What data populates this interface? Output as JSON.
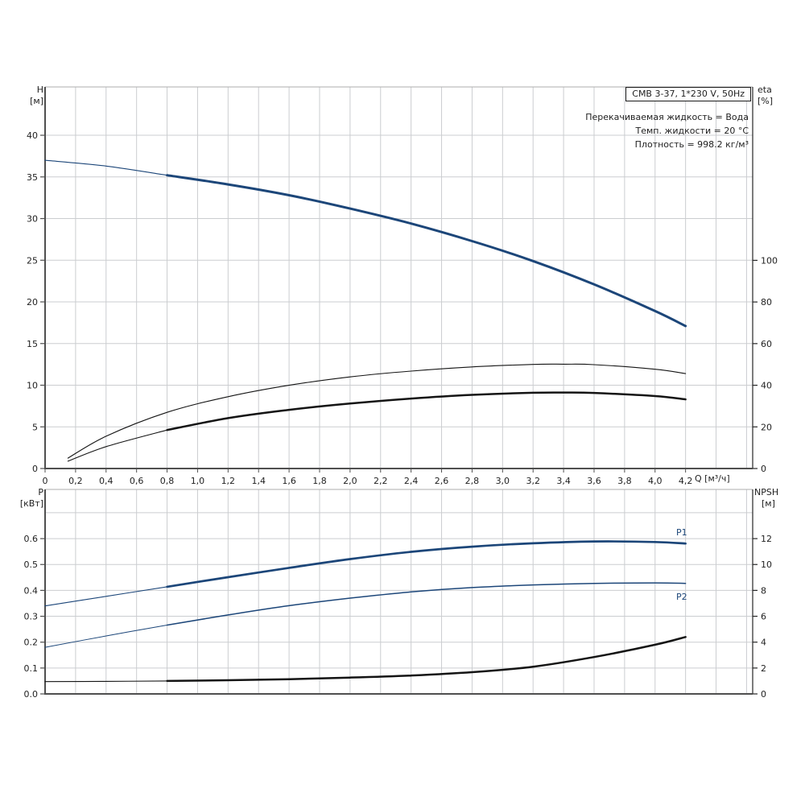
{
  "page": {
    "background": "#ffffff"
  },
  "colors": {
    "curve_blue": "#1c4679",
    "curve_black": "#141414",
    "grid": "#cbcdd0",
    "axis_dark": "#4f4f4f",
    "axis_light": "#aeaeae",
    "axis_right": "#262626",
    "text": "#1f1f1f"
  },
  "title_box": {
    "text": "CMB 3-37, 1*230 V, 50Hz"
  },
  "conditions": {
    "line1": "Перекачиваемая жидкость = Вода",
    "line2": "Темп. жидкости = 20 °C",
    "line3": "Плотность = 998.2 кг/м³"
  },
  "labels": {
    "h_top": "H",
    "h_unit": "[м]",
    "eta_top": "eta",
    "eta_unit": "[%]",
    "q_axis": "Q [м³/ч]",
    "p_top": "P",
    "p_unit": "[кВт]",
    "npsh_top": "NPSH",
    "npsh_unit": "[м]",
    "p1": "P1",
    "p2": "P2"
  },
  "chart_data": [
    {
      "type": "line",
      "name": "head-efficiency-chart",
      "title": "CMB 3-37, 1*230 V, 50Hz",
      "x": {
        "label": "Q [м³/ч]",
        "min": 0,
        "max": 4.64,
        "grid_values": [
          0.2,
          0.4,
          0.6,
          0.8,
          1.0,
          1.2,
          1.4,
          1.6,
          1.8,
          2.0,
          2.2,
          2.4,
          2.6,
          2.8,
          3.0,
          3.2,
          3.4,
          3.6,
          3.8,
          4.0,
          4.2,
          4.4,
          4.6
        ],
        "ticks": [
          0,
          0.2,
          0.4,
          0.6,
          0.8,
          1.0,
          1.2,
          1.4,
          1.6,
          1.8,
          2.0,
          2.2,
          2.4,
          2.6,
          2.8,
          3.0,
          3.2,
          3.4,
          3.6,
          3.8,
          4.0,
          4.2
        ],
        "tick_labels": [
          "0",
          "0,2",
          "0,4",
          "0,6",
          "0,8",
          "1,0",
          "1,2",
          "1,4",
          "1,6",
          "1,8",
          "2,0",
          "2,2",
          "2,4",
          "2,6",
          "2,8",
          "3,0",
          "3,2",
          "3,4",
          "3,6",
          "3,8",
          "4,0",
          "4,2"
        ]
      },
      "left": {
        "label": "H [м]",
        "min": 0,
        "max": 45.8,
        "grid_values": [
          5,
          10,
          15,
          20,
          25,
          30,
          35,
          40
        ],
        "ticks": [
          0,
          5,
          10,
          15,
          20,
          25,
          30,
          35,
          40
        ],
        "tick_labels": [
          "0",
          "5",
          "10",
          "15",
          "20",
          "25",
          "30",
          "35",
          "40"
        ]
      },
      "right": {
        "label": "eta [%]",
        "min": 0,
        "max": 183.3,
        "ticks": [
          0,
          20,
          40,
          60,
          80,
          100
        ],
        "tick_labels": [
          "0",
          "20",
          "40",
          "60",
          "80",
          "100"
        ]
      },
      "series": [
        {
          "name": "H-Q-curve",
          "axis": "left",
          "color": "#1c4679",
          "thin_width": 1.1,
          "thick_width": 3,
          "thick_from": 0.8,
          "points": [
            [
              0,
              37.0
            ],
            [
              0.4,
              36.3
            ],
            [
              0.8,
              35.2
            ],
            [
              1.2,
              34.1
            ],
            [
              1.6,
              32.8
            ],
            [
              2.0,
              31.2
            ],
            [
              2.4,
              29.4
            ],
            [
              2.8,
              27.3
            ],
            [
              3.2,
              24.9
            ],
            [
              3.6,
              22.1
            ],
            [
              4.0,
              18.9
            ],
            [
              4.2,
              17.1
            ]
          ]
        },
        {
          "name": "eta-pump-curve",
          "axis": "right",
          "color": "#141414",
          "thin_width": 1.1,
          "points": [
            [
              0.15,
              5
            ],
            [
              0.4,
              15.5
            ],
            [
              0.8,
              27
            ],
            [
              1.2,
              34.5
            ],
            [
              1.6,
              40
            ],
            [
              2.0,
              44
            ],
            [
              2.4,
              46.8
            ],
            [
              2.8,
              48.8
            ],
            [
              3.2,
              50
            ],
            [
              3.4,
              50.1
            ],
            [
              3.6,
              49.9
            ],
            [
              4.0,
              47.7
            ],
            [
              4.2,
              45.6
            ]
          ]
        },
        {
          "name": "eta-pump-motor-curve",
          "axis": "right",
          "color": "#141414",
          "thin_width": 1.1,
          "thick_width": 2.5,
          "thick_from": 0.8,
          "points": [
            [
              0.15,
              3.5
            ],
            [
              0.4,
              10.5
            ],
            [
              0.8,
              18.5
            ],
            [
              1.2,
              24.2
            ],
            [
              1.6,
              28.2
            ],
            [
              2.0,
              31.2
            ],
            [
              2.4,
              33.6
            ],
            [
              2.8,
              35.4
            ],
            [
              3.2,
              36.4
            ],
            [
              3.4,
              36.5
            ],
            [
              3.6,
              36.3
            ],
            [
              4.0,
              34.8
            ],
            [
              4.2,
              33.2
            ]
          ]
        }
      ]
    },
    {
      "type": "line",
      "name": "power-npsh-chart",
      "x": {
        "label": "",
        "min": 0,
        "max": 4.64,
        "grid_values": [
          0.2,
          0.4,
          0.6,
          0.8,
          1.0,
          1.2,
          1.4,
          1.6,
          1.8,
          2.0,
          2.2,
          2.4,
          2.6,
          2.8,
          3.0,
          3.2,
          3.4,
          3.6,
          3.8,
          4.0,
          4.2,
          4.4,
          4.6
        ],
        "ticks": [],
        "tick_labels": []
      },
      "left": {
        "label": "P [кВт]",
        "min": 0,
        "max": 0.79,
        "grid_values": [
          0.1,
          0.2,
          0.3,
          0.4,
          0.5,
          0.6,
          0.7
        ],
        "ticks": [
          0,
          0.1,
          0.2,
          0.3,
          0.4,
          0.5,
          0.6
        ],
        "tick_labels": [
          "0.0",
          "0.1",
          "0.2",
          "0.3",
          "0.4",
          "0.5",
          "0.6"
        ]
      },
      "right": {
        "label": "NPSH [м]",
        "min": 0,
        "max": 15.8,
        "ticks": [
          0,
          2,
          4,
          6,
          8,
          10,
          12
        ],
        "tick_labels": [
          "0",
          "2",
          "4",
          "6",
          "8",
          "10",
          "12"
        ]
      },
      "series": [
        {
          "name": "P1-curve",
          "axis": "left",
          "color": "#1c4679",
          "thin_width": 1.1,
          "thick_width": 2.7,
          "thick_from": 0.8,
          "points": [
            [
              0,
              0.34
            ],
            [
              0.4,
              0.377
            ],
            [
              0.8,
              0.414
            ],
            [
              1.2,
              0.451
            ],
            [
              1.6,
              0.487
            ],
            [
              2.0,
              0.521
            ],
            [
              2.4,
              0.549
            ],
            [
              2.8,
              0.569
            ],
            [
              3.2,
              0.582
            ],
            [
              3.6,
              0.589
            ],
            [
              4.0,
              0.587
            ],
            [
              4.2,
              0.581
            ]
          ]
        },
        {
          "name": "P2-curve",
          "axis": "left",
          "color": "#1c4679",
          "thin_width": 1.0,
          "thick_width": 1.5,
          "thick_from": 0.8,
          "points": [
            [
              0,
              0.18
            ],
            [
              0.4,
              0.224
            ],
            [
              0.8,
              0.266
            ],
            [
              1.2,
              0.305
            ],
            [
              1.6,
              0.341
            ],
            [
              2.0,
              0.37
            ],
            [
              2.4,
              0.394
            ],
            [
              2.8,
              0.411
            ],
            [
              3.2,
              0.421
            ],
            [
              3.6,
              0.427
            ],
            [
              4.0,
              0.429
            ],
            [
              4.2,
              0.427
            ]
          ]
        },
        {
          "name": "NPSH-curve",
          "axis": "right",
          "color": "#141414",
          "thin_width": 1.1,
          "thick_width": 2.5,
          "thick_from": 0.8,
          "points": [
            [
              0,
              0.95
            ],
            [
              0.4,
              0.97
            ],
            [
              0.8,
              1.0
            ],
            [
              1.2,
              1.06
            ],
            [
              1.6,
              1.14
            ],
            [
              2.0,
              1.26
            ],
            [
              2.4,
              1.42
            ],
            [
              2.8,
              1.68
            ],
            [
              3.2,
              2.1
            ],
            [
              3.6,
              2.85
            ],
            [
              4.0,
              3.8
            ],
            [
              4.2,
              4.4
            ]
          ]
        }
      ]
    }
  ]
}
